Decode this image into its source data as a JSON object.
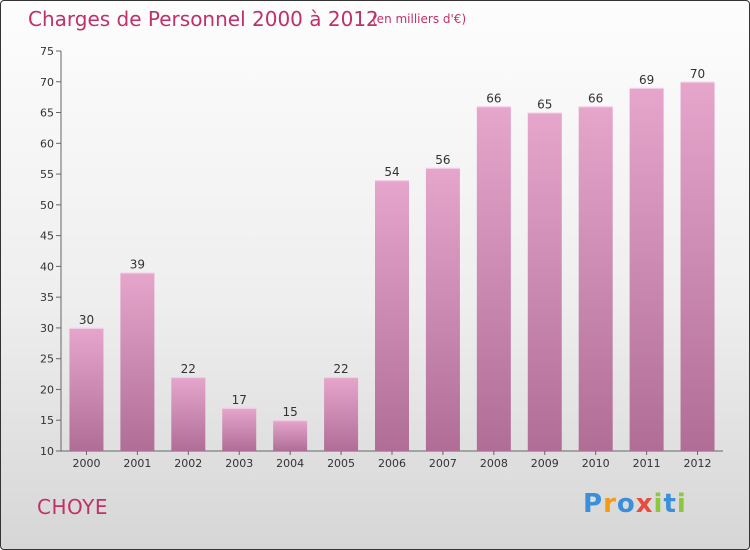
{
  "header": {
    "title": "Charges de Personnel 2000 à 2012",
    "subtitle": "(en milliers d'€)"
  },
  "footer": {
    "commune": "CHOYE",
    "logo_text": "Proxiti"
  },
  "colors": {
    "bar_top": "#e6a6cc",
    "bar_bottom": "#b06e96",
    "title": "#c0306a"
  },
  "chart_data": {
    "type": "bar",
    "title": "Charges de Personnel 2000 à 2012",
    "subtitle": "(en milliers d'€)",
    "categories": [
      "2000",
      "2001",
      "2002",
      "2003",
      "2004",
      "2005",
      "2006",
      "2007",
      "2008",
      "2009",
      "2010",
      "2011",
      "2012"
    ],
    "values": [
      30,
      39,
      22,
      17,
      15,
      22,
      54,
      56,
      66,
      65,
      66,
      69,
      70
    ],
    "ylim": [
      10,
      75
    ],
    "yticks": [
      10,
      15,
      20,
      25,
      30,
      35,
      40,
      45,
      50,
      55,
      60,
      65,
      70,
      75
    ],
    "grid": false,
    "legend": "none"
  }
}
